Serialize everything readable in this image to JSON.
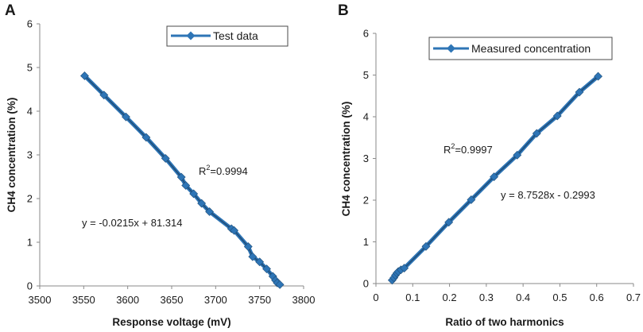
{
  "chart_data": [
    {
      "panel_label": "A",
      "type": "line",
      "legend": "Test data",
      "xlabel": "Response voltage (mV)",
      "ylabel": "CH4 concentration (%)",
      "xlim": [
        3500,
        3800
      ],
      "ylim": [
        0,
        6
      ],
      "xticks": [
        "3500",
        "3550",
        "3600",
        "3650",
        "3700",
        "3750",
        "3800"
      ],
      "yticks": [
        "0",
        "1",
        "2",
        "3",
        "4",
        "5",
        "6"
      ],
      "r2_base": "R",
      "r2_sup": "2",
      "r2_value": "=0.9994",
      "equation": "y = -0.0215x + 81.314",
      "series": [
        {
          "name": "Test data",
          "x": [
            3551,
            3573,
            3598,
            3621,
            3643,
            3661,
            3666,
            3675,
            3684,
            3693,
            3718,
            3721,
            3737,
            3742,
            3750,
            3758,
            3765,
            3768,
            3770,
            3773
          ],
          "y": [
            4.81,
            4.37,
            3.87,
            3.4,
            2.92,
            2.49,
            2.3,
            2.11,
            1.89,
            1.7,
            1.31,
            1.27,
            0.9,
            0.67,
            0.55,
            0.39,
            0.22,
            0.13,
            0.07,
            0.03
          ]
        }
      ],
      "colors": {
        "line": "#1f4e79",
        "marker": "#2e75b6"
      }
    },
    {
      "panel_label": "B",
      "type": "line",
      "legend": "Measured concentration",
      "xlabel": "Ratio of two harmonics",
      "ylabel": "CH4 concentration (%)",
      "xlim": [
        0,
        0.7
      ],
      "ylim": [
        0,
        6
      ],
      "xticks": [
        "0",
        "0.1",
        "0.2",
        "0.3",
        "0.4",
        "0.5",
        "0.6",
        "0.7"
      ],
      "yticks": [
        "0",
        "1",
        "2",
        "3",
        "4",
        "5",
        "6"
      ],
      "r2_base": "R",
      "r2_sup": "2",
      "r2_value": "=0.9997",
      "equation": "y = 8.7528x - 0.2993",
      "series": [
        {
          "name": "Measured concentration",
          "x": [
            0.044,
            0.049,
            0.053,
            0.057,
            0.061,
            0.068,
            0.077,
            0.136,
            0.198,
            0.259,
            0.321,
            0.384,
            0.437,
            0.493,
            0.553,
            0.604
          ],
          "y": [
            0.08,
            0.14,
            0.2,
            0.25,
            0.29,
            0.33,
            0.37,
            0.89,
            1.47,
            2.01,
            2.56,
            3.08,
            3.6,
            4.02,
            4.59,
            4.97
          ]
        }
      ],
      "colors": {
        "line": "#1f4e79",
        "marker": "#2e75b6"
      }
    }
  ]
}
